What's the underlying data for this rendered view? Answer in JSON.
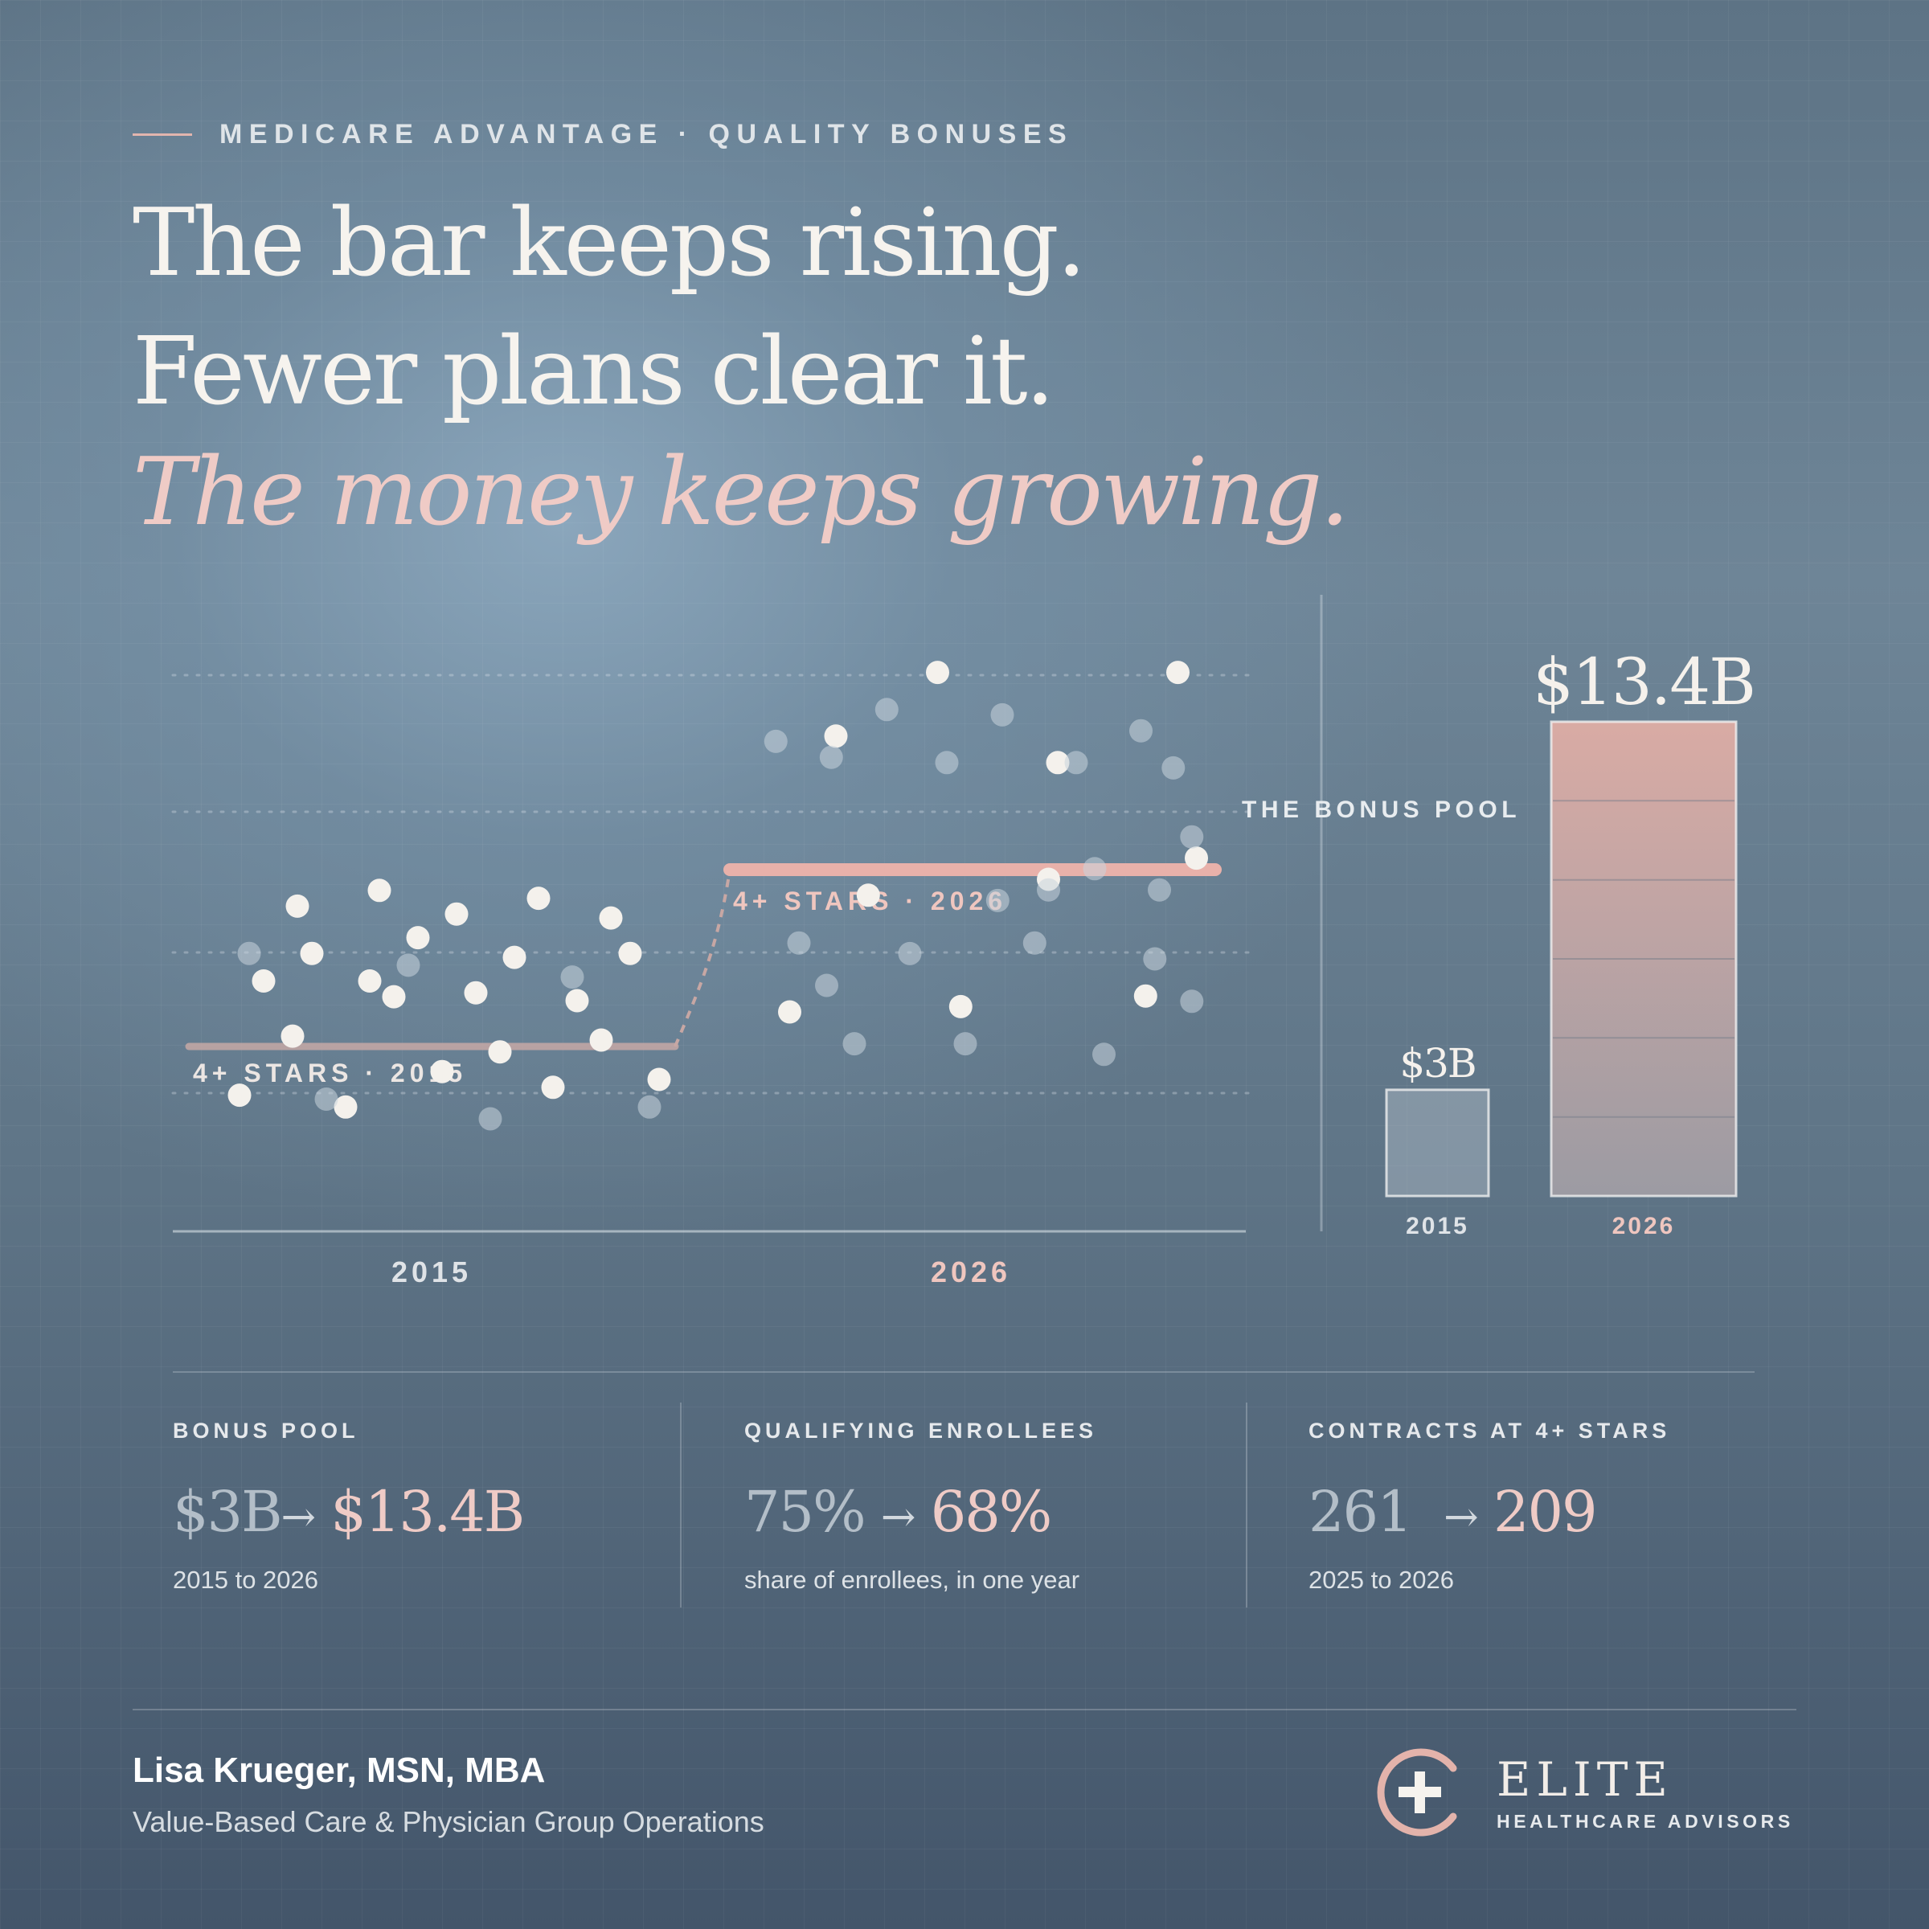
{
  "kicker": "MEDICARE ADVANTAGE · QUALITY BONUSES",
  "headline": {
    "line1": "The bar keeps rising.",
    "line2": "Fewer plans clear it.",
    "line3": "The money keeps growing."
  },
  "colors": {
    "accent_pink": "#e8b1aa",
    "dot_above": "#f4f1ec",
    "dot_below": "#c9d3dc",
    "ink_light": "#f6f3ee"
  },
  "chart_data": [
    {
      "type": "scatter",
      "title": "",
      "x_categories": [
        "2015",
        "2026"
      ],
      "threshold_lines": [
        {
          "label": "4+ STARS · 2015",
          "category": "2015"
        },
        {
          "label": "4+ STARS · 2026",
          "category": "2026"
        }
      ],
      "series": [
        {
          "category": "2015",
          "status": "above",
          "points": [
            [
              0.08,
              0.26
            ],
            [
              0.13,
              0.55
            ],
            [
              0.19,
              0.41
            ],
            [
              0.2,
              0.74
            ],
            [
              0.23,
              0.62
            ],
            [
              0.3,
              0.23
            ],
            [
              0.35,
              0.55
            ],
            [
              0.37,
              0.78
            ],
            [
              0.4,
              0.51
            ],
            [
              0.45,
              0.66
            ],
            [
              0.5,
              0.32
            ],
            [
              0.53,
              0.72
            ],
            [
              0.57,
              0.52
            ],
            [
              0.62,
              0.37
            ],
            [
              0.65,
              0.61
            ],
            [
              0.7,
              0.76
            ],
            [
              0.73,
              0.28
            ],
            [
              0.78,
              0.5
            ],
            [
              0.83,
              0.4
            ],
            [
              0.85,
              0.71
            ],
            [
              0.89,
              0.62
            ],
            [
              0.95,
              0.3
            ]
          ]
        },
        {
          "category": "2015",
          "status": "below",
          "points": [
            [
              0.1,
              0.62
            ],
            [
              0.26,
              0.25
            ],
            [
              0.43,
              0.59
            ],
            [
              0.6,
              0.2
            ],
            [
              0.77,
              0.56
            ],
            [
              0.93,
              0.23
            ]
          ]
        },
        {
          "category": "2026",
          "status": "above",
          "points": [
            [
              0.1,
              0.35
            ],
            [
              0.2,
              0.87
            ],
            [
              0.27,
              0.57
            ],
            [
              0.42,
              0.99
            ],
            [
              0.47,
              0.36
            ],
            [
              0.68,
              0.82
            ],
            [
              0.66,
              0.6
            ],
            [
              0.87,
              0.38
            ],
            [
              0.94,
              0.99
            ],
            [
              0.98,
              0.64
            ]
          ]
        },
        {
          "category": "2026",
          "status": "below",
          "points": [
            [
              0.07,
              0.86
            ],
            [
              0.12,
              0.48
            ],
            [
              0.19,
              0.83
            ],
            [
              0.24,
              0.29
            ],
            [
              0.18,
              0.4
            ],
            [
              0.31,
              0.92
            ],
            [
              0.36,
              0.46
            ],
            [
              0.44,
              0.82
            ],
            [
              0.48,
              0.29
            ],
            [
              0.55,
              0.56
            ],
            [
              0.56,
              0.91
            ],
            [
              0.63,
              0.48
            ],
            [
              0.66,
              0.58
            ],
            [
              0.72,
              0.82
            ],
            [
              0.78,
              0.27
            ],
            [
              0.76,
              0.62
            ],
            [
              0.86,
              0.88
            ],
            [
              0.89,
              0.45
            ],
            [
              0.93,
              0.81
            ],
            [
              0.97,
              0.68
            ],
            [
              0.97,
              0.37
            ],
            [
              0.9,
              0.58
            ]
          ]
        }
      ]
    },
    {
      "type": "bar",
      "title": "THE BONUS POOL",
      "categories": [
        "2015",
        "2026"
      ],
      "values": [
        3,
        13.4
      ],
      "value_labels": [
        "$3B",
        "$13.4B"
      ],
      "unit": "$B"
    }
  ],
  "stats": [
    {
      "label": "BONUS POOL",
      "old": "$3B",
      "new": "$13.4B",
      "arrow": "→",
      "note": "2015 to 2026"
    },
    {
      "label": "QUALIFYING ENROLLEES",
      "old": "75%",
      "new": "68%",
      "arrow": "→",
      "note": "share of enrollees, in one year"
    },
    {
      "label": "CONTRACTS AT 4+ STARS",
      "old": "261",
      "new": "209",
      "arrow": "→",
      "note": "2025 to 2026"
    }
  ],
  "author": {
    "name": "Lisa Krueger, MSN, MBA",
    "role": "Value-Based Care & Physician Group Operations"
  },
  "logo": {
    "name": "ELITE",
    "sub": "HEALTHCARE ADVISORS",
    "icon": "plus-circle-icon"
  }
}
